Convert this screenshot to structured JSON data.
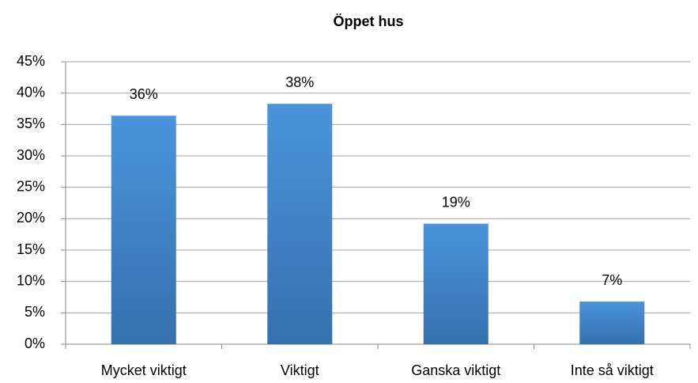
{
  "chart_data": {
    "type": "bar",
    "title": "Öppet hus",
    "categories": [
      "Mycket viktigt",
      "Viktigt",
      "Ganska viktigt",
      "Inte så viktigt"
    ],
    "values": [
      36.4,
      38.3,
      19.2,
      6.8
    ],
    "value_labels": [
      "36%",
      "38%",
      "19%",
      "7%"
    ],
    "color": "#3f7fc4",
    "ylim": [
      0,
      45
    ],
    "yticks": [
      {
        "value": 0,
        "label": "0%"
      },
      {
        "value": 5,
        "label": "5%"
      },
      {
        "value": 10,
        "label": "10%"
      },
      {
        "value": 15,
        "label": "15%"
      },
      {
        "value": 20,
        "label": "20%"
      },
      {
        "value": 25,
        "label": "25%"
      },
      {
        "value": 30,
        "label": "30%"
      },
      {
        "value": 35,
        "label": "35%"
      },
      {
        "value": 40,
        "label": "40%"
      },
      {
        "value": 45,
        "label": "45%"
      }
    ],
    "grid": true
  }
}
